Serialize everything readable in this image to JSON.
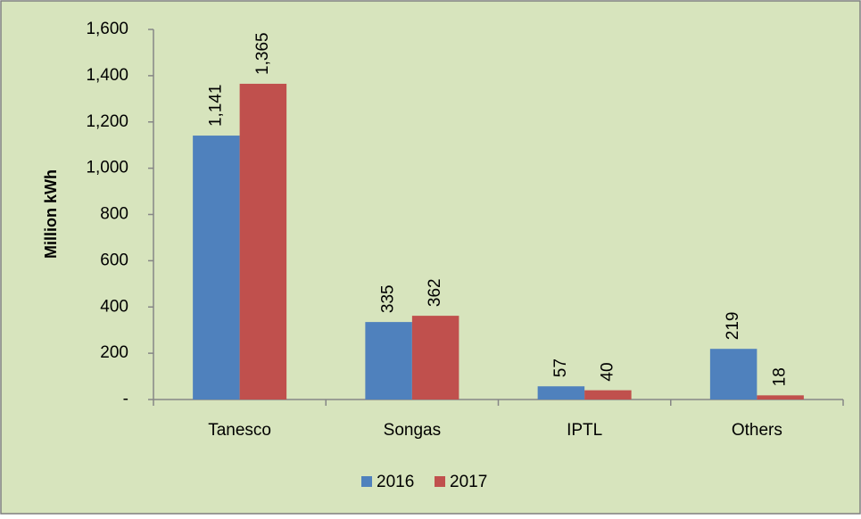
{
  "chart_data": {
    "type": "bar",
    "y_axis_label": "Million kWh",
    "categories": [
      "Tanesco",
      "Songas",
      "IPTL",
      "Others"
    ],
    "series": [
      {
        "name": "2016",
        "color": "#4f81bd",
        "values": [
          1141,
          335,
          57,
          219
        ],
        "value_labels": [
          "1,141",
          "335",
          "57",
          "219"
        ]
      },
      {
        "name": "2017",
        "color": "#c0504d",
        "values": [
          1365,
          362,
          40,
          18
        ],
        "value_labels": [
          "1,365",
          "362",
          "40",
          "18"
        ]
      }
    ],
    "ylim": [
      0,
      1600
    ],
    "yticks": [
      {
        "value": 0,
        "label": "-"
      },
      200,
      400,
      600,
      800,
      {
        "value": 1000,
        "label": "1,000"
      },
      {
        "value": 1200,
        "label": "1,200"
      },
      {
        "value": 1400,
        "label": "1,400"
      },
      {
        "value": 1600,
        "label": "1,600"
      }
    ],
    "legend": "bottom",
    "background": "#d7e4bd"
  }
}
